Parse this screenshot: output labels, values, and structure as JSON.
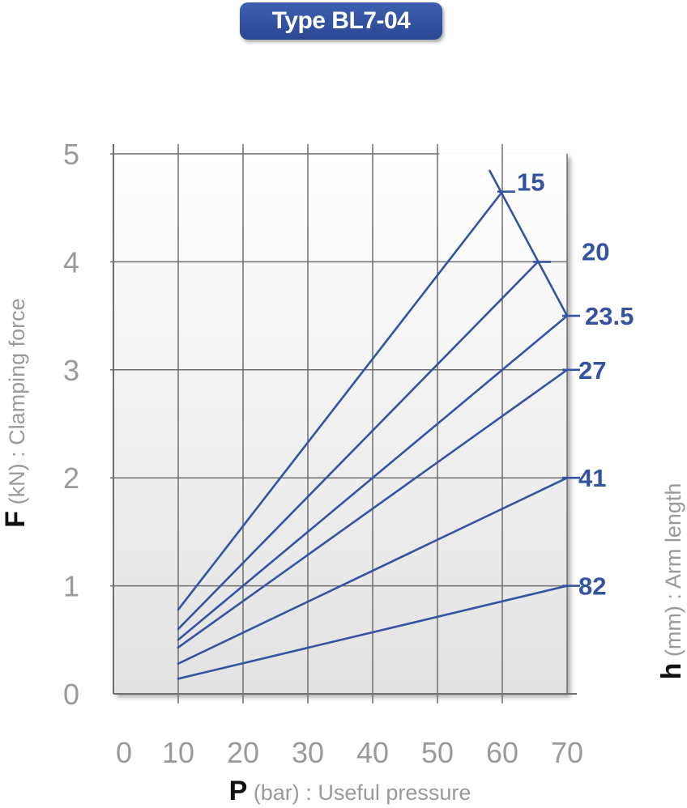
{
  "title": "Type BL7-04",
  "colors": {
    "line": "#3553a0",
    "badge": "#2f4f9f",
    "grid": "#6e6e6e",
    "tick": "#9a9a9a"
  },
  "chart_data": {
    "type": "line",
    "title": "Type BL7-04",
    "xlabel_symbol": "P",
    "xlabel_unit": "(bar)",
    "xlabel_text": ": Useful pressure",
    "ylabel_symbol": "F",
    "ylabel_unit": "(kN)",
    "ylabel_text": ": Clamping force",
    "rlabel_symbol": "h",
    "rlabel_unit": "(mm)",
    "rlabel_text": ": Arm length",
    "xlim": [
      0,
      70
    ],
    "ylim": [
      0,
      5
    ],
    "xticks": [
      "0",
      "10",
      "20",
      "30",
      "40",
      "50",
      "60",
      "70"
    ],
    "yticks": [
      "0",
      "1",
      "2",
      "3",
      "4",
      "5"
    ],
    "grid": true,
    "series": [
      {
        "name": "15",
        "x": [
          10,
          60
        ],
        "y": [
          0.78,
          4.65
        ]
      },
      {
        "name": "20",
        "x": [
          10,
          65.5
        ],
        "y": [
          0.6,
          4.0
        ]
      },
      {
        "name": "23.5",
        "x": [
          10,
          70
        ],
        "y": [
          0.5,
          3.5
        ]
      },
      {
        "name": "27",
        "x": [
          10,
          70
        ],
        "y": [
          0.43,
          3.0
        ]
      },
      {
        "name": "41",
        "x": [
          10,
          70
        ],
        "y": [
          0.28,
          2.0
        ]
      },
      {
        "name": "82",
        "x": [
          10,
          70
        ],
        "y": [
          0.14,
          1.0
        ]
      }
    ],
    "limit_line": {
      "x": [
        58,
        70
      ],
      "y": [
        4.85,
        3.5
      ]
    }
  }
}
